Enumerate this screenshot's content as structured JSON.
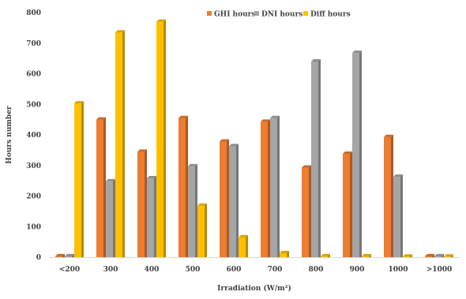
{
  "chart_data": {
    "type": "bar",
    "title": "",
    "xlabel": "Irradiation (W/m²)",
    "ylabel": "Hours number",
    "categories": [
      "<200",
      "300",
      "400",
      "500",
      "600",
      "700",
      "800",
      "900",
      "1000",
      ">1000"
    ],
    "series": [
      {
        "name": "GHI hours",
        "color": "#ED7D31",
        "values": [
          3,
          450,
          345,
          455,
          378,
          443,
          293,
          338,
          393,
          3
        ]
      },
      {
        "name": "DNI hours",
        "color": "#A5A5A5",
        "values": [
          3,
          248,
          258,
          297,
          363,
          455,
          640,
          668,
          263,
          3
        ]
      },
      {
        "name": "Diff hours",
        "color": "#FFC000",
        "values": [
          503,
          735,
          770,
          168,
          65,
          13,
          3,
          3,
          0,
          0
        ]
      }
    ],
    "ylim": [
      0,
      800
    ],
    "yticks": [
      0,
      100,
      200,
      300,
      400,
      500,
      600,
      700,
      800
    ],
    "grid": false,
    "legend": "top-right"
  }
}
